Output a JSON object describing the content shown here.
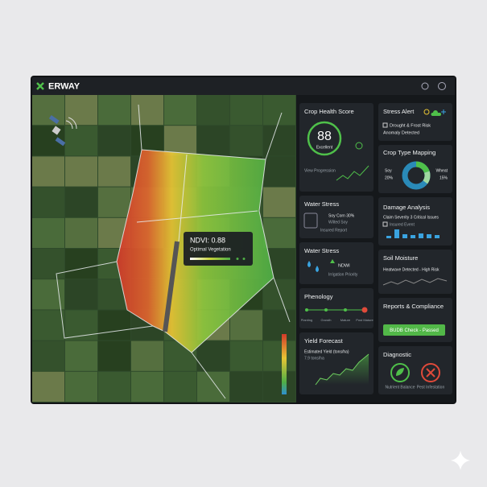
{
  "header": {
    "brand": "ERWAY"
  },
  "map": {
    "tooltip": {
      "title": "NDVI: 0.88",
      "subtitle": "Optimal Vegetation"
    }
  },
  "cards": {
    "crop_health": {
      "title": "Crop Health Score",
      "score": "88",
      "rating": "Excellent",
      "note": "View Progression"
    },
    "stress_alert": {
      "title": "Stress Alert",
      "line1": "Drought & Frost Risk",
      "line2": "Anomaly Detected"
    },
    "crop_type": {
      "title": "Crop Type Mapping",
      "segments": [
        {
          "name": "Soy",
          "value": 20,
          "label": "20%"
        },
        {
          "name": "Wheat",
          "value": 15,
          "label": "15%"
        }
      ]
    },
    "water_stress_1": {
      "title": "Water Stress",
      "line1": "Soy Corn 30%",
      "line2": "Wilted Soy",
      "line3": "Insured Report"
    },
    "damage": {
      "title": "Damage Analysis",
      "line1": "Claim Severity 3 Critical Issues",
      "line2": "Insured Event"
    },
    "water_stress_2": {
      "title": "Water Stress",
      "index": "NDWI",
      "line1": "Irrigation Priority"
    },
    "soil": {
      "title": "Soil Moisture",
      "line1": "Heatwave Detected - High Risk"
    },
    "phenology": {
      "title": "Phenology",
      "stages": [
        "Planting",
        "Growth",
        "Mature",
        "Post Mature"
      ]
    },
    "reports": {
      "title": "Reports & Compliance",
      "button": "BUDB Check - Passed"
    },
    "yield": {
      "title": "Yield Forecast",
      "line1": "Estimated Yield (tons/ha)",
      "line2": "7.9 tons/ha"
    },
    "diagnostic": {
      "title": "Diagnostic",
      "items": [
        "Nutrient Balance",
        "Pest Infestation"
      ]
    }
  }
}
